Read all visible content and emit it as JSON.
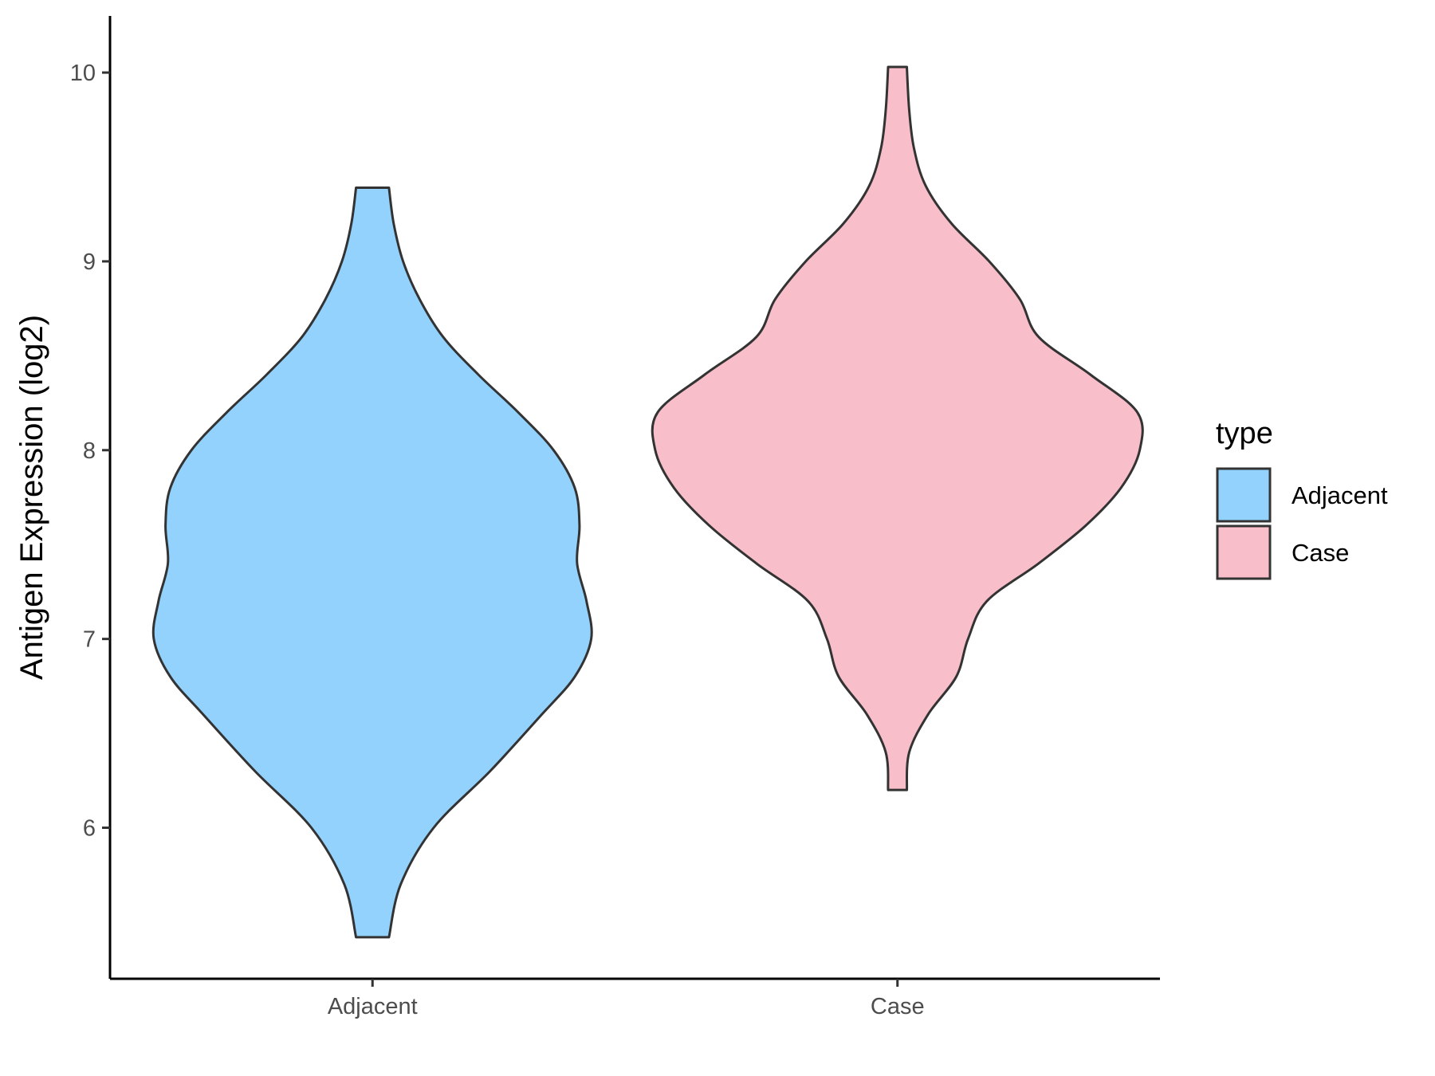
{
  "chart_data": {
    "type": "violin",
    "ylabel": "Antigen Expression (log2)",
    "xlabel": "",
    "ylim": [
      5.2,
      10.3
    ],
    "yticks": [
      6,
      7,
      8,
      9,
      10
    ],
    "grid": false,
    "categories": [
      "Adjacent",
      "Case"
    ],
    "legend": {
      "title": "type",
      "position": "right",
      "entries": [
        {
          "label": "Adjacent",
          "color": "#92d2fd"
        },
        {
          "label": "Case",
          "color": "#f8bfca"
        }
      ]
    },
    "series": [
      {
        "category": "Adjacent",
        "color": "#92d2fd",
        "min": 5.42,
        "max": 9.39,
        "density_profile": [
          [
            5.42,
            0.07
          ],
          [
            5.7,
            0.12
          ],
          [
            6.0,
            0.26
          ],
          [
            6.3,
            0.5
          ],
          [
            6.6,
            0.72
          ],
          [
            6.8,
            0.86
          ],
          [
            7.0,
            0.93
          ],
          [
            7.2,
            0.91
          ],
          [
            7.4,
            0.87
          ],
          [
            7.6,
            0.88
          ],
          [
            7.8,
            0.86
          ],
          [
            8.0,
            0.77
          ],
          [
            8.2,
            0.62
          ],
          [
            8.4,
            0.45
          ],
          [
            8.6,
            0.3
          ],
          [
            8.8,
            0.2
          ],
          [
            9.0,
            0.13
          ],
          [
            9.2,
            0.09
          ],
          [
            9.39,
            0.07
          ]
        ]
      },
      {
        "category": "Case",
        "color": "#f8bfca",
        "min": 6.2,
        "max": 10.03,
        "density_profile": [
          [
            6.2,
            0.04
          ],
          [
            6.4,
            0.05
          ],
          [
            6.6,
            0.13
          ],
          [
            6.8,
            0.25
          ],
          [
            7.0,
            0.3
          ],
          [
            7.2,
            0.38
          ],
          [
            7.4,
            0.6
          ],
          [
            7.6,
            0.8
          ],
          [
            7.8,
            0.95
          ],
          [
            8.0,
            1.03
          ],
          [
            8.2,
            1.02
          ],
          [
            8.4,
            0.82
          ],
          [
            8.6,
            0.6
          ],
          [
            8.8,
            0.52
          ],
          [
            9.0,
            0.39
          ],
          [
            9.2,
            0.23
          ],
          [
            9.4,
            0.12
          ],
          [
            9.6,
            0.07
          ],
          [
            9.8,
            0.05
          ],
          [
            10.03,
            0.04
          ]
        ]
      }
    ]
  }
}
